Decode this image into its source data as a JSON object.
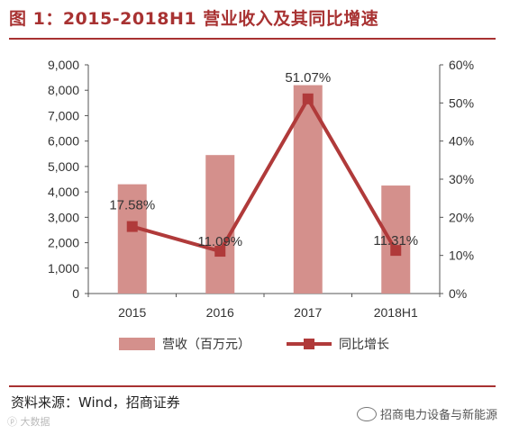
{
  "header": {
    "title": "图 1：2015-2018H1 营业收入及其同比增速"
  },
  "footer": {
    "source": "资料来源：Wind，招商证券",
    "account": "招商电力设备与新能源",
    "watermark": "ⓟ 大数据"
  },
  "colors": {
    "bar": "#d4908c",
    "line": "#b03a3a",
    "accent": "#a83232"
  },
  "chart_data": {
    "type": "bar+line",
    "categories": [
      "2015",
      "2016",
      "2017",
      "2018H1"
    ],
    "series": [
      {
        "name": "营收（百万元）",
        "type": "bar",
        "axis": "left",
        "values": [
          4300,
          5450,
          8200,
          4250
        ]
      },
      {
        "name": "同比增长",
        "type": "line",
        "axis": "right",
        "values": [
          17.58,
          11.09,
          51.07,
          11.31
        ],
        "labels": [
          "17.58%",
          "11.09%",
          "51.07%",
          "11.31%"
        ]
      }
    ],
    "y_left": {
      "min": 0,
      "max": 9000,
      "step": 1000,
      "ticks": [
        "0",
        "1,000",
        "2,000",
        "3,000",
        "4,000",
        "5,000",
        "6,000",
        "7,000",
        "8,000",
        "9,000"
      ]
    },
    "y_right": {
      "min": 0,
      "max": 60,
      "step": 10,
      "ticks": [
        "0%",
        "10%",
        "20%",
        "30%",
        "40%",
        "50%",
        "60%"
      ]
    },
    "legend_position": "bottom",
    "grid": false
  }
}
